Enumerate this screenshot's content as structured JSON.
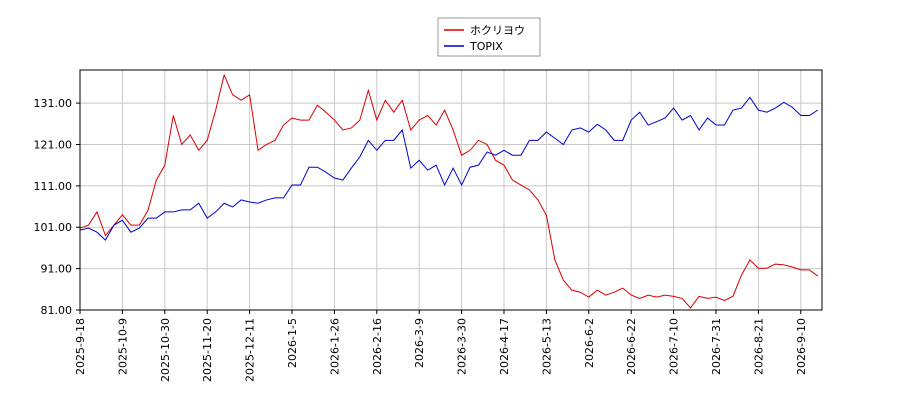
{
  "chart_data": {
    "type": "line",
    "categories": [
      "2025-9-18",
      null,
      null,
      null,
      null,
      "2025-10-9",
      null,
      null,
      null,
      null,
      "2025-10-30",
      null,
      null,
      null,
      null,
      "2025-11-20",
      null,
      null,
      null,
      null,
      "2025-12-11",
      null,
      null,
      null,
      null,
      "2026-1-5",
      null,
      null,
      null,
      null,
      "2026-1-26",
      null,
      null,
      null,
      null,
      "2026-2-16",
      null,
      null,
      null,
      null,
      "2026-3-9",
      null,
      null,
      null,
      null,
      "2026-3-30",
      null,
      null,
      null,
      null,
      "2026-4-17",
      null,
      null,
      null,
      null,
      "2026-5-13",
      null,
      null,
      null,
      null,
      "2026-6-2",
      null,
      null,
      null,
      null,
      "2026-6-22",
      null,
      null,
      null,
      null,
      "2026-7-10",
      null,
      null,
      null,
      null,
      "2026-7-31",
      null,
      null,
      null,
      null,
      "2026-8-21",
      null,
      null,
      null,
      null,
      "2026-9-10",
      null,
      null
    ],
    "series": [
      {
        "name": "ホクリヨウ",
        "color": "#dd0000",
        "values": [
          100.8,
          101.5,
          104.7,
          99,
          101.5,
          104,
          101.5,
          101.5,
          105,
          112.4,
          116,
          128,
          121,
          123.3,
          119.6,
          122,
          129.3,
          137.8,
          133,
          131.7,
          133,
          119.6,
          121,
          122,
          125.7,
          127.4,
          126.9,
          126.9,
          130.5,
          128.8,
          126.9,
          124.5,
          125,
          126.9,
          134.1,
          126.9,
          131.7,
          128.8,
          131.7,
          124.5,
          126.9,
          128,
          125.7,
          129.3,
          124.5,
          118.4,
          119.6,
          122,
          121,
          117.2,
          116,
          112.4,
          111.2,
          110,
          107.6,
          103.9,
          93.1,
          88.2,
          85.8,
          85.3,
          84.1,
          85.8,
          84.6,
          85.3,
          86.3,
          84.6,
          83.8,
          84.6,
          84.1,
          84.6,
          84.3,
          83.8,
          81.5,
          84.3,
          83.8,
          84.1,
          83.3,
          84.3,
          89.4,
          93.1,
          91.1,
          91.1,
          92.1,
          91.9,
          91.4,
          90.7,
          90.7,
          89.2
        ]
      },
      {
        "name": "TOPIX",
        "color": "#0000cc",
        "values": [
          100.3,
          100.8,
          99.8,
          97.9,
          101.5,
          102.7,
          99.8,
          100.8,
          103.2,
          103.2,
          104.7,
          104.7,
          105.2,
          105.2,
          106.8,
          103.2,
          104.7,
          106.8,
          105.9,
          107.6,
          107.1,
          106.8,
          107.6,
          108.1,
          108.1,
          111.2,
          111.2,
          115.5,
          115.5,
          114.3,
          112.9,
          112.4,
          115.3,
          118,
          122,
          119.6,
          122,
          122,
          124.5,
          115.3,
          117.2,
          114.8,
          116,
          111.2,
          115.3,
          111.2,
          115.5,
          116,
          119.2,
          118.4,
          119.6,
          118.4,
          118.4,
          122,
          122,
          124,
          122.5,
          121,
          124.5,
          125,
          124,
          125.9,
          124.5,
          122,
          122,
          126.9,
          128.8,
          125.7,
          126.5,
          127.4,
          129.8,
          126.9,
          128,
          124.5,
          127.4,
          125.7,
          125.7,
          129.3,
          129.8,
          132.4,
          129.3,
          128.8,
          129.8,
          131.2,
          130,
          128,
          128,
          129.3
        ]
      }
    ],
    "ylim": [
      81,
      139
    ],
    "yticks": [
      {
        "value": 81,
        "label": "81.00"
      },
      {
        "value": 91,
        "label": "91.00"
      },
      {
        "value": 101,
        "label": "101.00"
      },
      {
        "value": 111,
        "label": "111.00"
      },
      {
        "value": 121,
        "label": "121.00"
      },
      {
        "value": 131,
        "label": "131.00"
      }
    ],
    "grid": true
  }
}
